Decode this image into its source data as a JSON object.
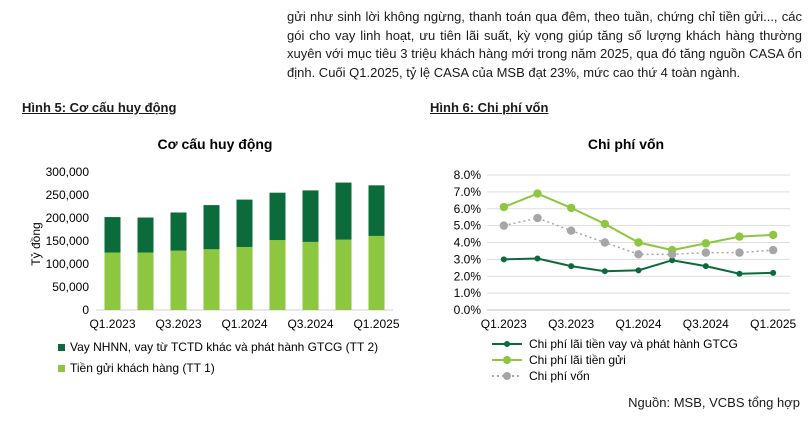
{
  "paragraph": "gửi như sinh lời không ngừng, thanh toán qua đêm, theo tuần, chứng chỉ tiền gửi..., các gói cho vay linh hoạt, ưu tiên lãi suất, kỳ vọng giúp tăng số lượng khách hàng thường xuyên với mục tiêu 3 triệu khách hàng mới trong năm 2025, qua đó tăng nguồn CASA ổn định. Cuối Q1.2025, tỷ lệ CASA của MSB đạt 23%, mức cao thứ 4 toàn ngành.",
  "figure5_caption": "Hình 5: Cơ cấu huy động",
  "figure6_caption": "Hình 6: Chi phí vốn",
  "source": "Nguồn: MSB, VCBS tổng hợp",
  "chart_data": [
    {
      "type": "bar",
      "stacked": true,
      "title": "Cơ cấu huy động",
      "ylabel": "Tỷ đồng",
      "ylim": [
        0,
        300000
      ],
      "yticks": [
        "0",
        "50,000",
        "100,000",
        "150,000",
        "200,000",
        "250,000",
        "300,000"
      ],
      "xtick_labels": [
        "Q1.2023",
        "Q3.2023",
        "Q1.2024",
        "Q3.2024",
        "Q1.2025"
      ],
      "categories": [
        "Q1.2023",
        "Q2.2023",
        "Q3.2023",
        "Q4.2023",
        "Q1.2024",
        "Q2.2024",
        "Q3.2024",
        "Q4.2024",
        "Q1.2025"
      ],
      "series": [
        {
          "name": "Tiền gửi khách hàng (TT 1)",
          "color": "#8dc63f",
          "values": [
            125000,
            125000,
            129000,
            132000,
            137000,
            152000,
            148000,
            153000,
            161000
          ]
        },
        {
          "name": "Vay NHNN, vay từ TCTD khác và phát hành GTCG (TT 2)",
          "color": "#0c6b3a",
          "values": [
            77000,
            76000,
            83000,
            96000,
            103000,
            103000,
            112000,
            124000,
            110000
          ]
        }
      ],
      "legend_order": [
        1,
        0
      ],
      "grid": false,
      "legend": "bottom"
    },
    {
      "type": "line",
      "title": "Chi phí vốn",
      "ylim": [
        0,
        8
      ],
      "yticks": [
        "0.0%",
        "1.0%",
        "2.0%",
        "3.0%",
        "4.0%",
        "5.0%",
        "6.0%",
        "7.0%",
        "8.0%"
      ],
      "xtick_labels": [
        "Q1.2023",
        "Q3.2023",
        "Q1.2024",
        "Q3.2024",
        "Q1.2025"
      ],
      "categories": [
        "Q1.2023",
        "Q2.2023",
        "Q3.2023",
        "Q4.2023",
        "Q1.2024",
        "Q2.2024",
        "Q3.2024",
        "Q4.2024",
        "Q1.2025"
      ],
      "series": [
        {
          "name": "Chi phí lãi tiền vay và phát hành GTCG",
          "color": "#0c6b3a",
          "style": "solid",
          "values": [
            3.0,
            3.05,
            2.6,
            2.3,
            2.35,
            2.95,
            2.6,
            2.15,
            2.2
          ]
        },
        {
          "name": "Chi phí lãi tiền gửi",
          "color": "#8dc63f",
          "style": "solid",
          "values": [
            6.1,
            6.9,
            6.05,
            5.1,
            4.0,
            3.55,
            3.95,
            4.35,
            4.45
          ]
        },
        {
          "name": "Chi phí vốn",
          "color": "#a6a6a6",
          "style": "dotted",
          "values": [
            5.0,
            5.45,
            4.7,
            4.0,
            3.3,
            3.3,
            3.4,
            3.4,
            3.55
          ]
        }
      ],
      "grid": true,
      "legend": "bottom"
    }
  ]
}
